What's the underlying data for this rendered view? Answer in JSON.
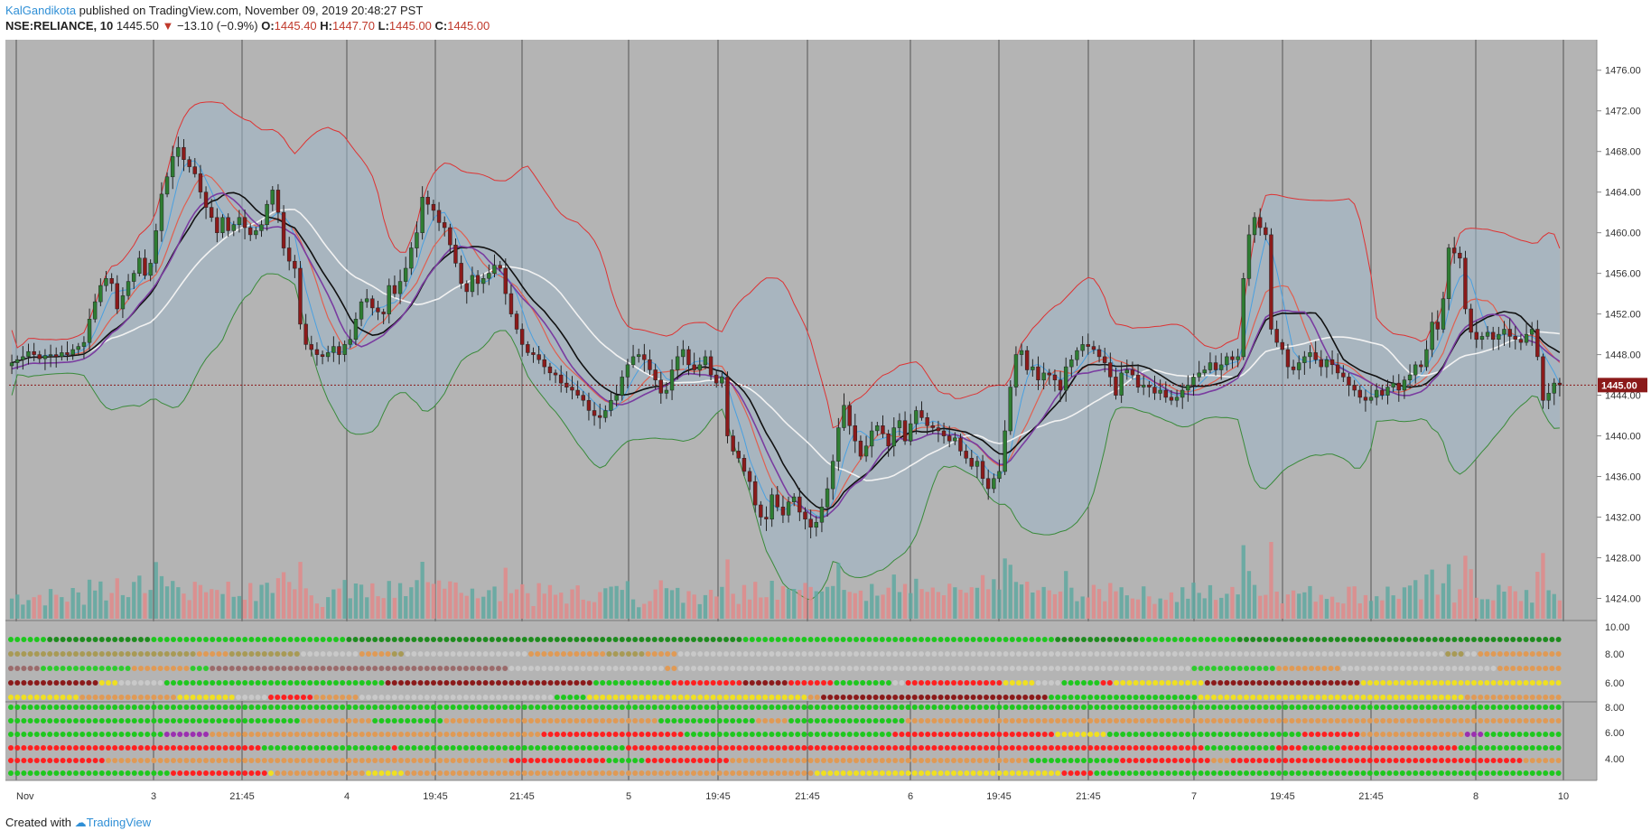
{
  "header": {
    "author": "KalGandikota",
    "published_text": " published on TradingView.com, November 09, 2019 20:48:27 PST",
    "symbol": "NSE:RELIANCE, 10",
    "last": "1445.50",
    "change_arrow": "▼",
    "change": "−13.10 (−0.9%)",
    "o_label": "O:",
    "o_value": "1445.40",
    "h_label": "H:",
    "h_value": "1447.70",
    "l_label": "L:",
    "l_value": "1445.00",
    "c_label": "C:",
    "c_value": "1445.00"
  },
  "footer": {
    "created_with": "Created with",
    "brand": "TradingView"
  },
  "colors": {
    "bull": "#2e7d32",
    "bear": "#8b1a1a",
    "chart_bg": "#b4b4b4",
    "price_badge": "#8b1a1a",
    "volume_bull": "#5fa8a0",
    "volume_bear": "#e08a8a"
  },
  "chart_data": {
    "type": "candlestick",
    "symbol": "NSE:RELIANCE",
    "interval": "10",
    "ylim": [
      1422,
      1479
    ],
    "y_ticks": [
      "1476.00",
      "1472.00",
      "1468.00",
      "1464.00",
      "1460.00",
      "1456.00",
      "1452.00",
      "1448.00",
      "1444.00",
      "1440.00",
      "1436.00",
      "1432.00",
      "1428.00",
      "1424.00"
    ],
    "last_price_label": "1445.00",
    "last_price": 1445.0,
    "x_ticks": [
      "Nov",
      "3",
      "21:45",
      "4",
      "19:45",
      "21:45",
      "5",
      "19:45",
      "21:45",
      "6",
      "19:45",
      "21:45",
      "7",
      "19:45",
      "21:45",
      "8",
      "10"
    ],
    "indicator_axis_1": [
      "10.00",
      "8.00",
      "6.00"
    ],
    "indicator_axis_2": [
      "8.00",
      "6.00",
      "4.00"
    ],
    "close": [
      1447.2,
      1447.5,
      1447.8,
      1448.3,
      1448.0,
      1447.6,
      1447.9,
      1448.0,
      1447.8,
      1448.2,
      1448.0,
      1448.5,
      1448.8,
      1449.2,
      1451.5,
      1453.2,
      1454.8,
      1455.5,
      1455.0,
      1452.5,
      1453.8,
      1455.2,
      1456.0,
      1457.5,
      1455.8,
      1457.0,
      1460.2,
      1463.8,
      1465.5,
      1467.5,
      1468.4,
      1467.2,
      1466.5,
      1465.8,
      1464.0,
      1462.5,
      1461.5,
      1460.0,
      1461.5,
      1460.2,
      1460.8,
      1461.5,
      1460.5,
      1459.8,
      1460.2,
      1460.8,
      1462.8,
      1464.2,
      1462.0,
      1458.5,
      1457.2,
      1456.5,
      1451.0,
      1449.0,
      1448.5,
      1448.0,
      1447.8,
      1448.2,
      1448.8,
      1448.0,
      1449.0,
      1449.5,
      1451.5,
      1453.2,
      1453.5,
      1452.6,
      1452.2,
      1452.0,
      1454.8,
      1454.0,
      1455.2,
      1456.5,
      1458.5,
      1460.0,
      1463.5,
      1462.8,
      1462.2,
      1461.0,
      1460.5,
      1458.8,
      1457.0,
      1455.0,
      1454.2,
      1455.8,
      1455.0,
      1455.5,
      1456.0,
      1456.8,
      1456.5,
      1454.0,
      1452.0,
      1450.5,
      1449.0,
      1448.2,
      1448.0,
      1447.5,
      1446.8,
      1446.2,
      1446.0,
      1445.2,
      1444.8,
      1444.5,
      1444.0,
      1443.5,
      1442.5,
      1442.0,
      1441.8,
      1442.5,
      1443.5,
      1444.0,
      1445.8,
      1447.0,
      1447.8,
      1448.0,
      1447.5,
      1446.5,
      1445.5,
      1444.2,
      1444.5,
      1446.5,
      1447.8,
      1448.5,
      1447.0,
      1446.5,
      1447.0,
      1447.8,
      1446.0,
      1445.2,
      1445.8,
      1440.0,
      1438.5,
      1437.8,
      1436.5,
      1435.5,
      1433.2,
      1432.0,
      1431.8,
      1434.2,
      1433.0,
      1432.2,
      1433.5,
      1434.0,
      1432.5,
      1431.8,
      1431.0,
      1431.5,
      1433.0,
      1434.8,
      1437.5,
      1440.8,
      1443.0,
      1441.0,
      1439.5,
      1438.0,
      1439.0,
      1440.5,
      1441.0,
      1440.2,
      1439.0,
      1440.8,
      1441.5,
      1439.5,
      1441.2,
      1442.5,
      1441.8,
      1441.0,
      1440.8,
      1440.5,
      1440.0,
      1439.5,
      1439.8,
      1438.5,
      1437.8,
      1437.0,
      1437.5,
      1435.8,
      1434.8,
      1435.8,
      1436.5,
      1440.5,
      1444.8,
      1448.0,
      1448.4,
      1446.5,
      1446.8,
      1445.5,
      1446.2,
      1446.0,
      1445.5,
      1444.5,
      1446.8,
      1447.5,
      1448.4,
      1449.0,
      1448.8,
      1448.5,
      1447.8,
      1447.2,
      1445.8,
      1444.0,
      1446.2,
      1446.5,
      1446.0,
      1444.8,
      1445.0,
      1444.8,
      1444.2,
      1444.5,
      1443.8,
      1443.5,
      1443.8,
      1444.5,
      1445.0,
      1445.8,
      1446.2,
      1446.5,
      1447.2,
      1446.5,
      1447.0,
      1447.8,
      1447.5,
      1447.8,
      1455.5,
      1459.8,
      1461.5,
      1460.5,
      1459.8,
      1450.5,
      1449.2,
      1448.5,
      1446.8,
      1446.5,
      1447.2,
      1447.8,
      1448.2,
      1447.5,
      1446.8,
      1447.5,
      1447.0,
      1446.2,
      1445.8,
      1445.0,
      1444.5,
      1443.8,
      1443.5,
      1443.8,
      1444.5,
      1444.0,
      1444.8,
      1445.2,
      1444.5,
      1445.5,
      1446.0,
      1447.0,
      1446.8,
      1448.5,
      1451.2,
      1450.5,
      1453.5,
      1458.5,
      1458.0,
      1457.5,
      1452.5,
      1450.2,
      1449.5,
      1449.8,
      1450.2,
      1449.5,
      1450.0,
      1450.5,
      1449.8,
      1449.5,
      1449.2,
      1450.0,
      1450.5,
      1447.8,
      1443.5,
      1444.2,
      1445.2,
      1445.0
    ]
  }
}
